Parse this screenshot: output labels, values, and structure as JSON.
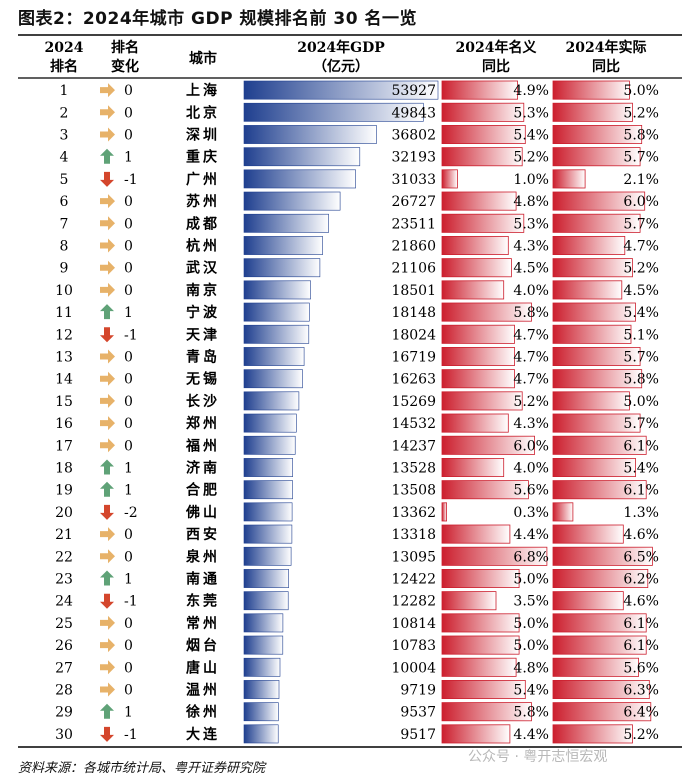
{
  "figure_title": "图表2：2024年城市 GDP 规模排名前 30 名一览",
  "source": "资料来源：各城市统计局、粤开证券研究院",
  "watermark": "公众号 · 粤开志恒宏观",
  "colors": {
    "gdp_bar_dark": "#1f3f8f",
    "gdp_bar_light": "#ffffff",
    "growth_bar": "#cc1f2e",
    "arrow_up": "#5fa277",
    "arrow_down": "#d4462c",
    "arrow_flat": "#e7b269",
    "rule": "#000000"
  },
  "chart_data": {
    "type": "table",
    "title": "2024年城市GDP规模排名前30名一览",
    "columns": [
      {
        "key": "rank",
        "label_lines": [
          "2024",
          "排名"
        ]
      },
      {
        "key": "change",
        "label_lines": [
          "排名",
          "变化"
        ]
      },
      {
        "key": "city",
        "label_lines": [
          "城市"
        ]
      },
      {
        "key": "gdp",
        "label_lines": [
          "2024年GDP",
          "（亿元）"
        ]
      },
      {
        "key": "nominal",
        "label_lines": [
          "2024年名义",
          "同比"
        ]
      },
      {
        "key": "real",
        "label_lines": [
          "2024年实际",
          "同比"
        ]
      }
    ],
    "rows": [
      {
        "rank": 1,
        "change": 0,
        "change_label": "0",
        "city": "上海",
        "gdp": 53927,
        "nominal": 4.9,
        "nominal_label": "4.9%",
        "real": 5.0,
        "real_label": "5.0%"
      },
      {
        "rank": 2,
        "change": 0,
        "change_label": "0",
        "city": "北京",
        "gdp": 49843,
        "nominal": 5.3,
        "nominal_label": "5.3%",
        "real": 5.2,
        "real_label": "5.2%"
      },
      {
        "rank": 3,
        "change": 0,
        "change_label": "0",
        "city": "深圳",
        "gdp": 36802,
        "nominal": 5.4,
        "nominal_label": "5.4%",
        "real": 5.8,
        "real_label": "5.8%"
      },
      {
        "rank": 4,
        "change": 1,
        "change_label": "1",
        "city": "重庆",
        "gdp": 32193,
        "nominal": 5.2,
        "nominal_label": "5.2%",
        "real": 5.7,
        "real_label": "5.7%"
      },
      {
        "rank": 5,
        "change": -1,
        "change_label": "-1",
        "city": "广州",
        "gdp": 31033,
        "nominal": 1.0,
        "nominal_label": "1.0%",
        "real": 2.1,
        "real_label": "2.1%"
      },
      {
        "rank": 6,
        "change": 0,
        "change_label": "0",
        "city": "苏州",
        "gdp": 26727,
        "nominal": 4.8,
        "nominal_label": "4.8%",
        "real": 6.0,
        "real_label": "6.0%"
      },
      {
        "rank": 7,
        "change": 0,
        "change_label": "0",
        "city": "成都",
        "gdp": 23511,
        "nominal": 5.3,
        "nominal_label": "5.3%",
        "real": 5.7,
        "real_label": "5.7%"
      },
      {
        "rank": 8,
        "change": 0,
        "change_label": "0",
        "city": "杭州",
        "gdp": 21860,
        "nominal": 4.3,
        "nominal_label": "4.3%",
        "real": 4.7,
        "real_label": "4.7%"
      },
      {
        "rank": 9,
        "change": 0,
        "change_label": "0",
        "city": "武汉",
        "gdp": 21106,
        "nominal": 4.5,
        "nominal_label": "4.5%",
        "real": 5.2,
        "real_label": "5.2%"
      },
      {
        "rank": 10,
        "change": 0,
        "change_label": "0",
        "city": "南京",
        "gdp": 18501,
        "nominal": 4.0,
        "nominal_label": "4.0%",
        "real": 4.5,
        "real_label": "4.5%"
      },
      {
        "rank": 11,
        "change": 1,
        "change_label": "1",
        "city": "宁波",
        "gdp": 18148,
        "nominal": 5.8,
        "nominal_label": "5.8%",
        "real": 5.4,
        "real_label": "5.4%"
      },
      {
        "rank": 12,
        "change": -1,
        "change_label": "-1",
        "city": "天津",
        "gdp": 18024,
        "nominal": 4.7,
        "nominal_label": "4.7%",
        "real": 5.1,
        "real_label": "5.1%"
      },
      {
        "rank": 13,
        "change": 0,
        "change_label": "0",
        "city": "青岛",
        "gdp": 16719,
        "nominal": 4.7,
        "nominal_label": "4.7%",
        "real": 5.7,
        "real_label": "5.7%"
      },
      {
        "rank": 14,
        "change": 0,
        "change_label": "0",
        "city": "无锡",
        "gdp": 16263,
        "nominal": 4.7,
        "nominal_label": "4.7%",
        "real": 5.8,
        "real_label": "5.8%"
      },
      {
        "rank": 15,
        "change": 0,
        "change_label": "0",
        "city": "长沙",
        "gdp": 15269,
        "nominal": 5.2,
        "nominal_label": "5.2%",
        "real": 5.0,
        "real_label": "5.0%"
      },
      {
        "rank": 16,
        "change": 0,
        "change_label": "0",
        "city": "郑州",
        "gdp": 14532,
        "nominal": 4.3,
        "nominal_label": "4.3%",
        "real": 5.7,
        "real_label": "5.7%"
      },
      {
        "rank": 17,
        "change": 0,
        "change_label": "0",
        "city": "福州",
        "gdp": 14237,
        "nominal": 6.0,
        "nominal_label": "6.0%",
        "real": 6.1,
        "real_label": "6.1%"
      },
      {
        "rank": 18,
        "change": 1,
        "change_label": "1",
        "city": "济南",
        "gdp": 13528,
        "nominal": 4.0,
        "nominal_label": "4.0%",
        "real": 5.4,
        "real_label": "5.4%"
      },
      {
        "rank": 19,
        "change": 1,
        "change_label": "1",
        "city": "合肥",
        "gdp": 13508,
        "nominal": 5.6,
        "nominal_label": "5.6%",
        "real": 6.1,
        "real_label": "6.1%"
      },
      {
        "rank": 20,
        "change": -2,
        "change_label": "-2",
        "city": "佛山",
        "gdp": 13362,
        "nominal": 0.3,
        "nominal_label": "0.3%",
        "real": 1.3,
        "real_label": "1.3%"
      },
      {
        "rank": 21,
        "change": 0,
        "change_label": "0",
        "city": "西安",
        "gdp": 13318,
        "nominal": 4.4,
        "nominal_label": "4.4%",
        "real": 4.6,
        "real_label": "4.6%"
      },
      {
        "rank": 22,
        "change": 0,
        "change_label": "0",
        "city": "泉州",
        "gdp": 13095,
        "nominal": 6.8,
        "nominal_label": "6.8%",
        "real": 6.5,
        "real_label": "6.5%"
      },
      {
        "rank": 23,
        "change": 1,
        "change_label": "1",
        "city": "南通",
        "gdp": 12422,
        "nominal": 5.0,
        "nominal_label": "5.0%",
        "real": 6.2,
        "real_label": "6.2%"
      },
      {
        "rank": 24,
        "change": -1,
        "change_label": "-1",
        "city": "东莞",
        "gdp": 12282,
        "nominal": 3.5,
        "nominal_label": "3.5%",
        "real": 4.6,
        "real_label": "4.6%"
      },
      {
        "rank": 25,
        "change": 0,
        "change_label": "0",
        "city": "常州",
        "gdp": 10814,
        "nominal": 5.0,
        "nominal_label": "5.0%",
        "real": 6.1,
        "real_label": "6.1%"
      },
      {
        "rank": 26,
        "change": 0,
        "change_label": "0",
        "city": "烟台",
        "gdp": 10783,
        "nominal": 5.0,
        "nominal_label": "5.0%",
        "real": 6.1,
        "real_label": "6.1%"
      },
      {
        "rank": 27,
        "change": 0,
        "change_label": "0",
        "city": "唐山",
        "gdp": 10004,
        "nominal": 4.8,
        "nominal_label": "4.8%",
        "real": 5.6,
        "real_label": "5.6%"
      },
      {
        "rank": 28,
        "change": 0,
        "change_label": "0",
        "city": "温州",
        "gdp": 9719,
        "nominal": 5.4,
        "nominal_label": "5.4%",
        "real": 6.3,
        "real_label": "6.3%"
      },
      {
        "rank": 29,
        "change": 1,
        "change_label": "1",
        "city": "徐州",
        "gdp": 9537,
        "nominal": 5.8,
        "nominal_label": "5.8%",
        "real": 6.4,
        "real_label": "6.4%"
      },
      {
        "rank": 30,
        "change": -1,
        "change_label": "-1",
        "city": "大连",
        "gdp": 9517,
        "nominal": 4.4,
        "nominal_label": "4.4%",
        "real": 5.2,
        "real_label": "5.2%"
      }
    ]
  }
}
